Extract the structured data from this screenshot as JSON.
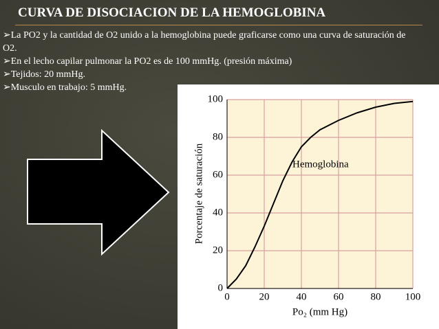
{
  "slide": {
    "title": "CURVA DE DISOCIACION DE LA HEMOGLOBINA",
    "bullets": [
      "La PO2 y la cantidad de O2 unido a la hemoglobina puede graficarse como una curva de saturación de O2.",
      "En el lecho capilar pulmonar la PO2 es de 100 mmHg. (presión máxima)",
      "Tejidos: 20 mmHg.",
      "Musculo en trabajo: 5 mmHg."
    ]
  },
  "chart_data": {
    "type": "line",
    "ylabel": "Porcentaje de saturación",
    "xlabel": "Po₂ (mm Hg)",
    "annotation": "Hemoglobina",
    "x": [
      0,
      5,
      10,
      15,
      20,
      25,
      30,
      35,
      40,
      45,
      50,
      60,
      70,
      80,
      90,
      100
    ],
    "values": [
      0,
      5,
      12,
      22,
      33,
      45,
      57,
      67,
      75,
      80,
      84,
      89,
      93,
      96,
      98,
      99
    ],
    "color": "#000000",
    "xlim": [
      0,
      100
    ],
    "xticks": [
      0,
      20,
      40,
      60,
      80,
      100
    ],
    "ylim": [
      0,
      100
    ],
    "yticks": [
      0,
      20,
      40,
      60,
      80,
      100
    ],
    "grid": true
  }
}
